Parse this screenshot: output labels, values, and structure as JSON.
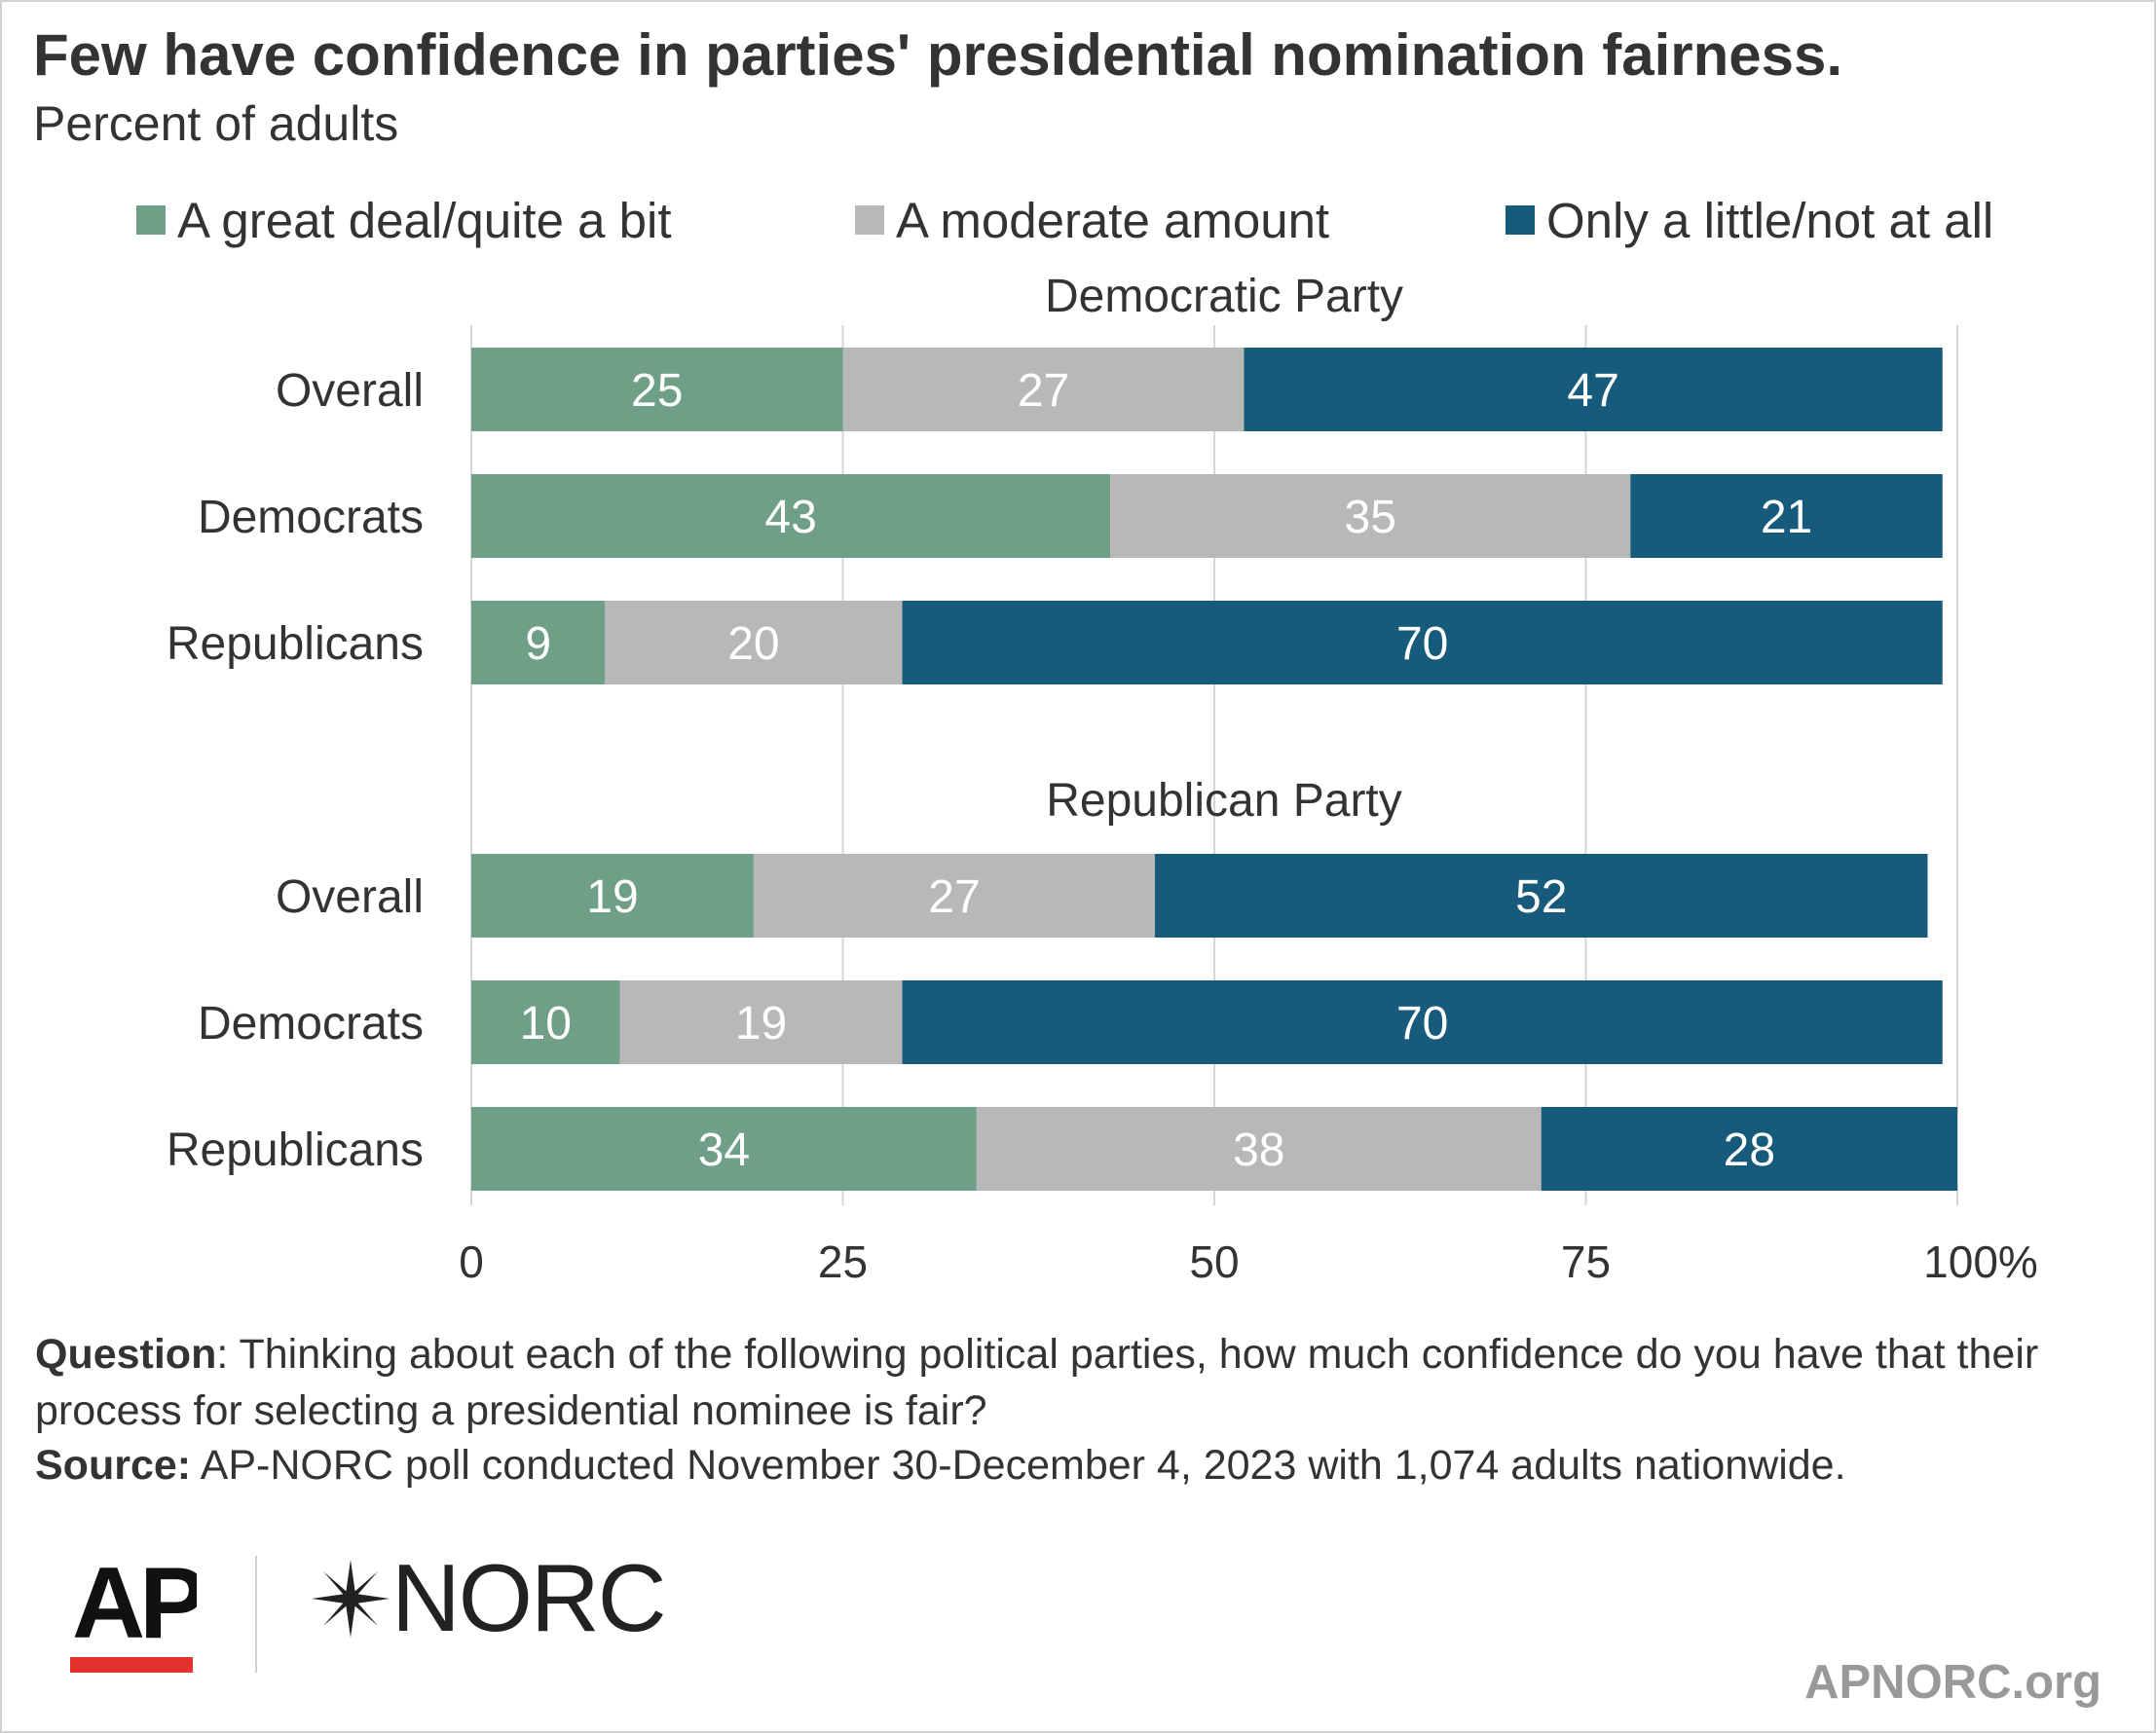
{
  "title": "Few have confidence in parties' presidential nomination fairness.",
  "subtitle": "Percent of adults",
  "legend": [
    {
      "label": "A great deal/quite a bit",
      "color": "#6fa087"
    },
    {
      "label": "A moderate amount",
      "color": "#b8b8b8"
    },
    {
      "label": "Only a little/not at all",
      "color": "#175b7c"
    }
  ],
  "chart_data": {
    "type": "bar",
    "orientation": "horizontal",
    "stacked": true,
    "title": "Few have confidence in parties' presidential nomination fairness.",
    "subtitle": "Percent of adults",
    "xlim": [
      0,
      100
    ],
    "x_ticks": [
      "0",
      "25",
      "50",
      "75",
      "100%"
    ],
    "grid": true,
    "legend_position": "top",
    "series_names": [
      "A great deal/quite a bit",
      "A moderate amount",
      "Only a little/not at all"
    ],
    "groups": [
      {
        "name": "Democratic Party",
        "rows": [
          {
            "label": "Overall",
            "values": [
              25,
              27,
              47
            ]
          },
          {
            "label": "Democrats",
            "values": [
              43,
              35,
              21
            ]
          },
          {
            "label": "Republicans",
            "values": [
              9,
              20,
              70
            ]
          }
        ]
      },
      {
        "name": "Republican Party",
        "rows": [
          {
            "label": "Overall",
            "values": [
              19,
              27,
              52
            ]
          },
          {
            "label": "Democrats",
            "values": [
              10,
              19,
              70
            ]
          },
          {
            "label": "Republicans",
            "values": [
              34,
              38,
              28
            ]
          }
        ]
      }
    ]
  },
  "footnote": {
    "question_label": "Question",
    "question_text": ": Thinking about each of the following political parties, how much confidence do you have that their process for selecting a presidential nominee is fair?",
    "source_label": "Source:",
    "source_text": " AP-NORC poll conducted November 30-December 4, 2023 with 1,074 adults nationwide."
  },
  "logos": {
    "ap": "AP",
    "norc": "NORC"
  },
  "site": "APNORC.org"
}
